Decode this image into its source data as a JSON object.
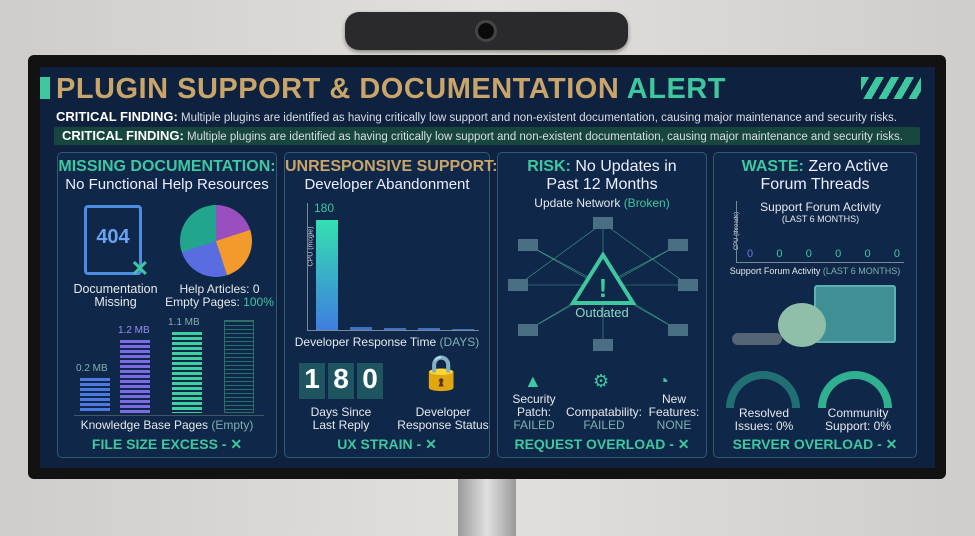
{
  "title": {
    "main": "PLUGIN SUPPORT & DOCUMENTATION",
    "accent": "ALERT"
  },
  "critical": {
    "label": "CRITICAL FINDING:",
    "text": "Multiple plugins are identified as having critically low support and non-existent documentation, causing major maintenance and security risks."
  },
  "panel1": {
    "heading": "MISSING DOCUMENTATION:",
    "sub": "No Functional Help Resources",
    "doc_code": "404",
    "doc_label1": "Documentation",
    "doc_label2": "Missing",
    "help_articles": "Help Articles: 0",
    "empty_pages_label": "Empty Pages:",
    "empty_pages_value": "100%",
    "stacks": [
      "0.2 MB",
      "1.2 MB",
      "1.1 MB"
    ],
    "axis": "Knowledge Base Pages",
    "axis_note": "(Empty)",
    "footer": "FILE SIZE EXCESS - ✕"
  },
  "panel2": {
    "heading": "UNRESPONSIVE SUPPORT:",
    "sub": "Developer Abandonment",
    "bar_value": "180",
    "ylabel": "CPU (mcgle)",
    "xlabel": "Developer Response Time",
    "xunit": "(DAYS)",
    "digits": [
      "1",
      "8",
      "0"
    ],
    "days_label1": "Days Since",
    "days_label2": "Last Reply",
    "status_label1": "Developer",
    "status_label2": "Response Status",
    "footer": "UX STRAIN - ✕"
  },
  "panel3": {
    "heading": "RISK:",
    "heading_rest": "No Updates in",
    "sub": "Past 12 Months",
    "network": "Update Network",
    "network_note": "(Broken)",
    "center": "Outdated",
    "stats": [
      {
        "l1": "Security",
        "l2": "Patch:",
        "v": "FAILED"
      },
      {
        "l1": "",
        "l2": "Compatability:",
        "v": "FAILED"
      },
      {
        "l1": "New",
        "l2": "Features:",
        "v": "NONE"
      }
    ],
    "footer": "REQUEST OVERLOAD - ✕"
  },
  "panel4": {
    "heading": "WASTE:",
    "heading_rest": "Zero Active",
    "sub": "Forum Threads",
    "chart_title": "Support Forum Activity",
    "chart_sub": "(LAST 6 MONTHS)",
    "ylabel": "CPU (threads)",
    "values": [
      "0",
      "0",
      "0",
      "0",
      "0",
      "0"
    ],
    "xlabel": "Support Forum Activity",
    "xnote": "(LAST 6 MONTHS)",
    "gauge1_l1": "Resolved",
    "gauge1_l2": "Issues: 0%",
    "gauge2_l1": "Community",
    "gauge2_l2": "Support: 0%",
    "footer": "SERVER OVERLOAD - ✕"
  },
  "colors": {
    "teal": "#3fc7a0",
    "gold": "#c9a56a",
    "navy": "#0e2240"
  }
}
